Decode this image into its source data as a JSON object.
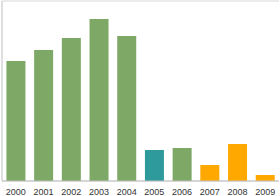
{
  "chart_data": {
    "type": "bar",
    "categories": [
      "2000",
      "2001",
      "2002",
      "2003",
      "2004",
      "2005",
      "2006",
      "2007",
      "2008",
      "2009"
    ],
    "values": [
      4.0,
      4.37,
      4.77,
      5.4,
      4.83,
      1.03,
      1.1,
      0.53,
      1.23,
      0.2
    ],
    "colors": [
      "#7ea865",
      "#7ea865",
      "#7ea865",
      "#7ea865",
      "#7ea865",
      "#2e9a9c",
      "#7ea865",
      "#ffa800",
      "#ffa800",
      "#ffa800"
    ],
    "ylim": [
      0,
      6
    ],
    "yticks": [
      0,
      1,
      2,
      3,
      4,
      5,
      6
    ],
    "grid": true,
    "tick_labels": "x"
  }
}
